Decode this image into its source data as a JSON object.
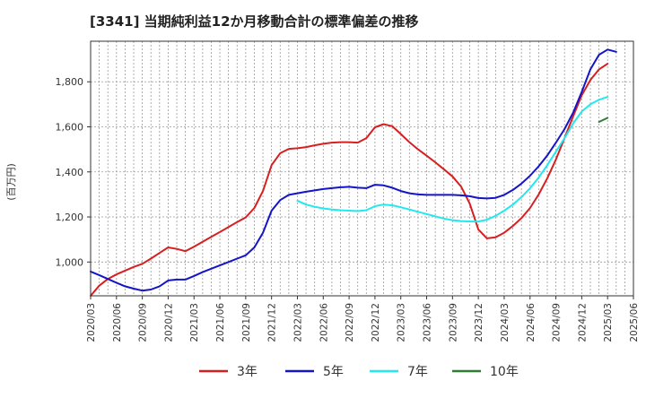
{
  "chart_data": {
    "type": "line",
    "title": "[3341]  当期純利益12か月移動合計の標準偏差の推移",
    "ylabel": "(百万円)",
    "xlabel": "",
    "ylim": [
      850,
      1980
    ],
    "yticks": [
      1000,
      1200,
      1400,
      1600,
      1800
    ],
    "ytick_labels": [
      "1,000",
      "1,200",
      "1,400",
      "1,600",
      "1,800"
    ],
    "xlim": [
      "2020/03",
      "2025/06"
    ],
    "xtick_labels": [
      "2020/03",
      "2020/06",
      "2020/09",
      "2020/12",
      "2021/03",
      "2021/06",
      "2021/09",
      "2021/12",
      "2022/03",
      "2022/06",
      "2022/09",
      "2022/12",
      "2023/03",
      "2023/06",
      "2023/09",
      "2023/12",
      "2024/03",
      "2024/06",
      "2024/09",
      "2024/12",
      "2025/03",
      "2025/06"
    ],
    "grid": true,
    "legend_position": "bottom",
    "series": [
      {
        "name": "3年",
        "color": "#d62020",
        "x": [
          "2020/03",
          "2020/04",
          "2020/05",
          "2020/06",
          "2020/07",
          "2020/08",
          "2020/09",
          "2020/10",
          "2020/11",
          "2020/12",
          "2021/01",
          "2021/02",
          "2021/03",
          "2021/04",
          "2021/05",
          "2021/06",
          "2021/07",
          "2021/08",
          "2021/09",
          "2021/10",
          "2021/11",
          "2021/12",
          "2022/01",
          "2022/02",
          "2022/03",
          "2022/04",
          "2022/05",
          "2022/06",
          "2022/07",
          "2022/08",
          "2022/09",
          "2022/10",
          "2022/11",
          "2022/12",
          "2023/01",
          "2023/02",
          "2023/03",
          "2023/04",
          "2023/05",
          "2023/06",
          "2023/07",
          "2023/08",
          "2023/09",
          "2023/10",
          "2023/11",
          "2023/12",
          "2024/01",
          "2024/02",
          "2024/03",
          "2024/04",
          "2024/05",
          "2024/06",
          "2024/07",
          "2024/08",
          "2024/09",
          "2024/10",
          "2024/11",
          "2024/12",
          "2025/01",
          "2025/02",
          "2025/03",
          "2025/04",
          "2025/05"
        ],
        "values": [
          850,
          895,
          925,
          945,
          962,
          978,
          992,
          1015,
          1040,
          1065,
          1058,
          1048,
          1068,
          1090,
          1112,
          1133,
          1155,
          1177,
          1198,
          1240,
          1315,
          1430,
          1483,
          1502,
          1505,
          1510,
          1518,
          1525,
          1530,
          1532,
          1532,
          1530,
          1550,
          1598,
          1612,
          1603,
          1568,
          1532,
          1500,
          1472,
          1443,
          1412,
          1380,
          1335,
          1260,
          1145,
          1105,
          1110,
          1130,
          1160,
          1195,
          1240,
          1300,
          1372,
          1455,
          1550,
          1647,
          1740,
          1808,
          1855,
          1880,
          null,
          null
        ]
      },
      {
        "name": "5年",
        "color": "#1414c8",
        "x": [
          "2020/03",
          "2020/04",
          "2020/05",
          "2020/06",
          "2020/07",
          "2020/08",
          "2020/09",
          "2020/10",
          "2020/11",
          "2020/12",
          "2021/01",
          "2021/02",
          "2021/03",
          "2021/04",
          "2021/05",
          "2021/06",
          "2021/07",
          "2021/08",
          "2021/09",
          "2021/10",
          "2021/11",
          "2021/12",
          "2022/01",
          "2022/02",
          "2022/03",
          "2022/04",
          "2022/05",
          "2022/06",
          "2022/07",
          "2022/08",
          "2022/09",
          "2022/10",
          "2022/11",
          "2022/12",
          "2023/01",
          "2023/02",
          "2023/03",
          "2023/04",
          "2023/05",
          "2023/06",
          "2023/07",
          "2023/08",
          "2023/09",
          "2023/10",
          "2023/11",
          "2023/12",
          "2024/01",
          "2024/02",
          "2024/03",
          "2024/04",
          "2024/05",
          "2024/06",
          "2024/07",
          "2024/08",
          "2024/09",
          "2024/10",
          "2024/11",
          "2024/12",
          "2025/01",
          "2025/02",
          "2025/03",
          "2025/04",
          "2025/05"
        ],
        "values": [
          958,
          942,
          925,
          908,
          892,
          882,
          873,
          878,
          892,
          918,
          922,
          922,
          938,
          955,
          970,
          985,
          1000,
          1015,
          1030,
          1065,
          1130,
          1228,
          1275,
          1298,
          1305,
          1312,
          1318,
          1324,
          1328,
          1332,
          1334,
          1330,
          1328,
          1343,
          1340,
          1330,
          1315,
          1305,
          1300,
          1298,
          1298,
          1298,
          1298,
          1296,
          1292,
          1284,
          1282,
          1285,
          1298,
          1320,
          1348,
          1383,
          1425,
          1473,
          1530,
          1590,
          1663,
          1755,
          1855,
          1920,
          1943,
          1933,
          null
        ]
      },
      {
        "name": "7年",
        "color": "#22e8f0",
        "x": [
          "2022/03",
          "2022/04",
          "2022/05",
          "2022/06",
          "2022/07",
          "2022/08",
          "2022/09",
          "2022/10",
          "2022/11",
          "2022/12",
          "2023/01",
          "2023/02",
          "2023/03",
          "2023/04",
          "2023/05",
          "2023/06",
          "2023/07",
          "2023/08",
          "2023/09",
          "2023/10",
          "2023/11",
          "2023/12",
          "2024/01",
          "2024/02",
          "2024/03",
          "2024/04",
          "2024/05",
          "2024/06",
          "2024/07",
          "2024/08",
          "2024/09",
          "2024/10",
          "2024/11",
          "2024/12",
          "2025/01",
          "2025/02",
          "2025/03"
        ],
        "values": [
          1272,
          1255,
          1245,
          1238,
          1233,
          1230,
          1228,
          1226,
          1230,
          1248,
          1255,
          1252,
          1243,
          1233,
          1223,
          1213,
          1203,
          1193,
          1186,
          1182,
          1180,
          1180,
          1188,
          1205,
          1228,
          1255,
          1288,
          1328,
          1375,
          1430,
          1490,
          1550,
          1615,
          1668,
          1700,
          1720,
          1733
        ]
      },
      {
        "name": "10年",
        "color": "#2e7d32",
        "x": [
          "2025/02",
          "2025/03"
        ],
        "values": [
          1622,
          1640
        ]
      }
    ]
  }
}
